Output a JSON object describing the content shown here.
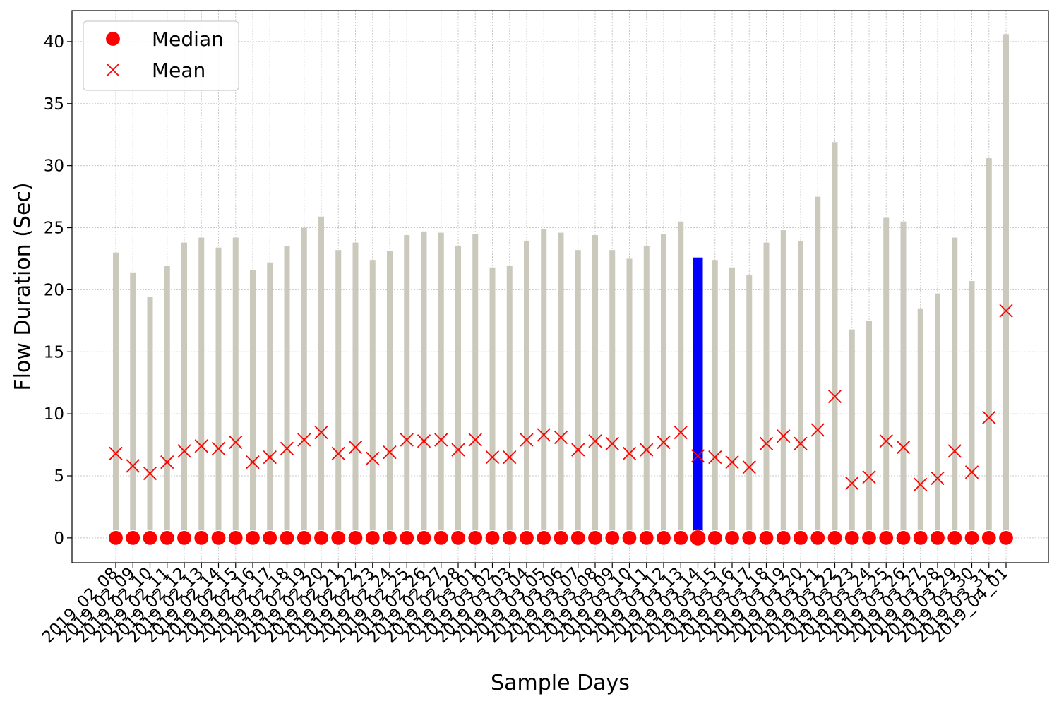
{
  "chart_data": {
    "type": "bar",
    "xlabel": "Sample Days",
    "ylabel": "Flow Duration (Sec)",
    "ylim": [
      -2,
      42.5
    ],
    "yticks": [
      0,
      5,
      10,
      15,
      20,
      25,
      30,
      35,
      40
    ],
    "grid": true,
    "legend": {
      "placement": "top-left",
      "entries": [
        "Median",
        "Mean"
      ]
    },
    "colors": {
      "bar": "#cbc9bc",
      "highlight_bar": "#0000ff",
      "marker": "#ff0000",
      "grid": "#c8c8c8"
    },
    "highlight_category": "2019_03_14",
    "categories": [
      "2019_02_08",
      "2019_02_09",
      "2019_02_10",
      "2019_02_11",
      "2019_02_12",
      "2019_02_13",
      "2019_02_14",
      "2019_02_15",
      "2019_02_16",
      "2019_02_17",
      "2019_02_18",
      "2019_02_19",
      "2019_02_20",
      "2019_02_21",
      "2019_02_22",
      "2019_02_23",
      "2019_02_24",
      "2019_02_25",
      "2019_02_26",
      "2019_02_27",
      "2019_02_28",
      "2019_03_01",
      "2019_03_02",
      "2019_03_03",
      "2019_03_04",
      "2019_03_05",
      "2019_03_06",
      "2019_03_07",
      "2019_03_08",
      "2019_03_09",
      "2019_03_10",
      "2019_03_11",
      "2019_03_12",
      "2019_03_13",
      "2019_03_14",
      "2019_03_15",
      "2019_03_16",
      "2019_03_17",
      "2019_03_18",
      "2019_03_19",
      "2019_03_20",
      "2019_03_21",
      "2019_03_22",
      "2019_03_23",
      "2019_03_24",
      "2019_03_25",
      "2019_03_26",
      "2019_03_27",
      "2019_03_28",
      "2019_03_29",
      "2019_03_30",
      "2019_03_31",
      "2019_04_01"
    ],
    "series": [
      {
        "name": "Bar",
        "values": [
          23.0,
          21.4,
          19.4,
          21.9,
          23.8,
          24.2,
          23.4,
          24.2,
          21.6,
          22.2,
          23.5,
          25.0,
          25.9,
          23.2,
          23.8,
          22.4,
          23.1,
          24.4,
          24.7,
          24.6,
          23.5,
          24.5,
          21.8,
          21.9,
          23.9,
          24.9,
          24.6,
          23.2,
          24.4,
          23.2,
          22.5,
          23.5,
          24.5,
          25.5,
          22.6,
          22.4,
          21.8,
          21.2,
          23.8,
          24.8,
          23.9,
          27.5,
          31.9,
          16.8,
          17.5,
          25.8,
          25.5,
          18.5,
          19.7,
          24.2,
          20.7,
          30.6,
          40.6
        ]
      },
      {
        "name": "Median",
        "values": [
          0,
          0,
          0,
          0,
          0,
          0,
          0,
          0,
          0,
          0,
          0,
          0,
          0,
          0,
          0,
          0,
          0,
          0,
          0,
          0,
          0,
          0,
          0,
          0,
          0,
          0,
          0,
          0,
          0,
          0,
          0,
          0,
          0,
          0,
          0,
          0,
          0,
          0,
          0,
          0,
          0,
          0,
          0,
          0,
          0,
          0,
          0,
          0,
          0,
          0,
          0,
          0,
          0
        ]
      },
      {
        "name": "Mean",
        "values": [
          6.8,
          5.8,
          5.2,
          6.1,
          7.0,
          7.4,
          7.2,
          7.7,
          6.1,
          6.5,
          7.2,
          7.9,
          8.5,
          6.8,
          7.3,
          6.4,
          6.9,
          7.9,
          7.8,
          7.9,
          7.1,
          7.9,
          6.5,
          6.5,
          7.9,
          8.3,
          8.1,
          7.1,
          7.8,
          7.6,
          6.8,
          7.1,
          7.7,
          8.5,
          6.6,
          6.5,
          6.1,
          5.7,
          7.6,
          8.2,
          7.6,
          8.7,
          11.4,
          4.4,
          4.9,
          7.8,
          7.3,
          4.3,
          4.8,
          7.0,
          5.3,
          9.7,
          18.3
        ]
      }
    ]
  }
}
